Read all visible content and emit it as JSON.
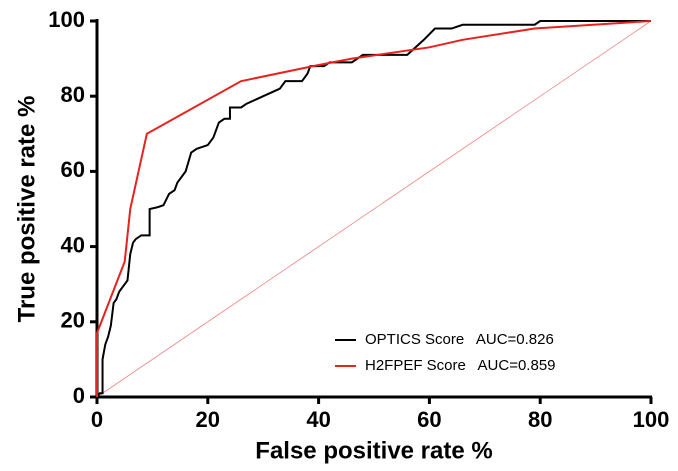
{
  "chart_data": {
    "type": "line",
    "x_label": "False positive rate %",
    "y_label": "True positive rate %",
    "xlim": [
      0,
      100
    ],
    "ylim": [
      0,
      100
    ],
    "xticks": [
      0,
      20,
      40,
      60,
      80,
      100
    ],
    "yticks": [
      0,
      20,
      40,
      60,
      80,
      100
    ],
    "series": [
      {
        "name": "OPTICS Score   AUC=0.826",
        "color": "#000000",
        "x": [
          0,
          0.5,
          1,
          1,
          1.5,
          2,
          2.5,
          3,
          3.5,
          4,
          4.5,
          5,
          5.5,
          6,
          6.5,
          7,
          8,
          9.5,
          9.5,
          11,
          12,
          13,
          14,
          14.5,
          15,
          16,
          17,
          18,
          19,
          20,
          21,
          22,
          23,
          24,
          24,
          26,
          27,
          30,
          33,
          34,
          37,
          38,
          38.5,
          41,
          42,
          46,
          48,
          56,
          59,
          61,
          64,
          66,
          79,
          80,
          100
        ],
        "values": [
          0,
          1,
          1,
          10,
          14,
          16,
          19,
          25,
          26,
          28,
          29,
          30,
          31,
          38,
          41,
          42,
          43,
          43,
          50,
          50.5,
          51,
          54,
          55,
          57,
          58,
          60,
          65,
          66,
          66.5,
          67,
          69,
          73,
          74,
          74,
          77,
          77,
          78,
          80,
          82,
          84,
          84,
          86,
          88,
          88,
          89,
          89,
          91,
          91,
          95,
          98,
          98,
          99,
          99,
          100,
          100
        ]
      },
      {
        "name": "H2FPEF Score   AUC=0.859",
        "color": "#e5231f",
        "x": [
          0,
          0,
          5,
          6,
          9,
          26,
          39,
          46,
          60,
          66,
          79,
          100
        ],
        "values": [
          0,
          17,
          36,
          50,
          70,
          84,
          88,
          90,
          93,
          95,
          98,
          100
        ]
      }
    ]
  }
}
